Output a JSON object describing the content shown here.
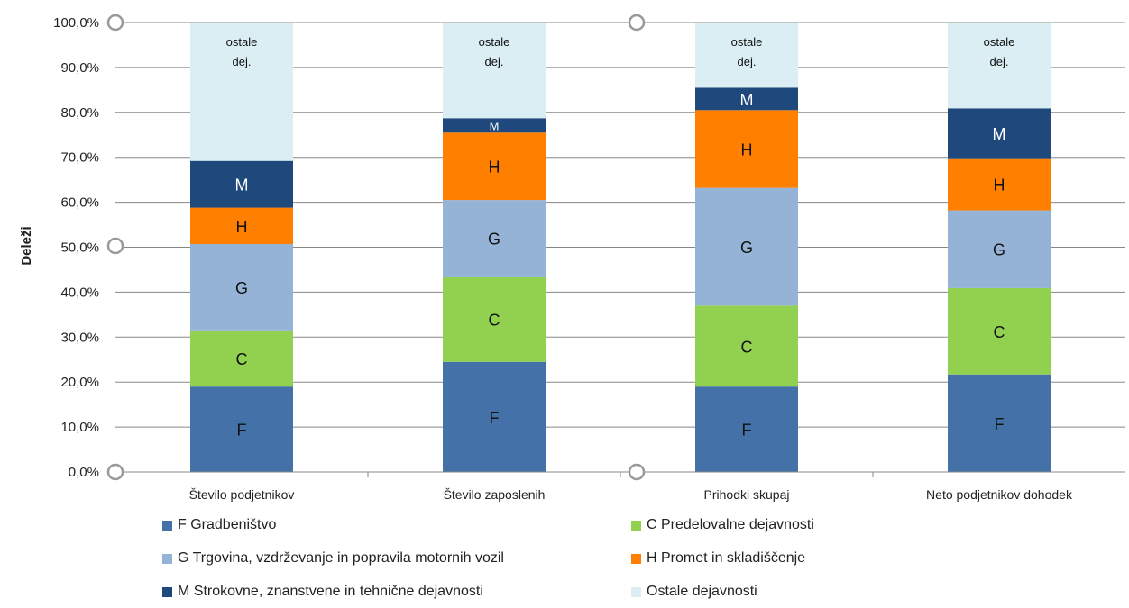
{
  "chart_data": {
    "type": "bar",
    "stacked": true,
    "ylabel": "Deleži",
    "xlabel": "",
    "ylim": [
      0,
      100
    ],
    "y_ticks": [
      "0,0%",
      "10,0%",
      "20,0%",
      "30,0%",
      "40,0%",
      "50,0%",
      "60,0%",
      "70,0%",
      "80,0%",
      "90,0%",
      "100,0%"
    ],
    "categories": [
      "Število podjetnikov",
      "Število zaposlenih",
      "Prihodki skupaj",
      "Neto podjetnikov dohodek"
    ],
    "series": [
      {
        "name": "F Gradbeništvo",
        "short": "F",
        "color": "#4472a8",
        "text_color": "#111111",
        "values": [
          19,
          24.5,
          19,
          21.7
        ]
      },
      {
        "name": "C Predelovalne dejavnosti",
        "short": "C",
        "color": "#92d050",
        "text_color": "#111111",
        "values": [
          12.5,
          19,
          18,
          19.2
        ]
      },
      {
        "name": "G Trgovina, vzdrževanje in popravila motornih vozil",
        "short": "G",
        "color": "#95b3d7",
        "text_color": "#111111",
        "values": [
          19.2,
          17,
          26.2,
          17.3
        ]
      },
      {
        "name": "H Promet in skladiščenje",
        "short": "H",
        "color": "#ff8000",
        "text_color": "#111111",
        "values": [
          8.1,
          15,
          17.3,
          11.6
        ]
      },
      {
        "name": "M Strokovne, znanstvene in tehnične dejavnosti",
        "short": "M",
        "color": "#1f497d",
        "text_color": "#ffffff",
        "values": [
          10.4,
          3.2,
          5,
          11.1
        ]
      },
      {
        "name": "Ostale dejavnosti",
        "short": "ostale dej.",
        "color": "#daeef3",
        "text_color": "#111111",
        "values": [
          30.8,
          21.3,
          14.5,
          19.1
        ]
      }
    ]
  }
}
